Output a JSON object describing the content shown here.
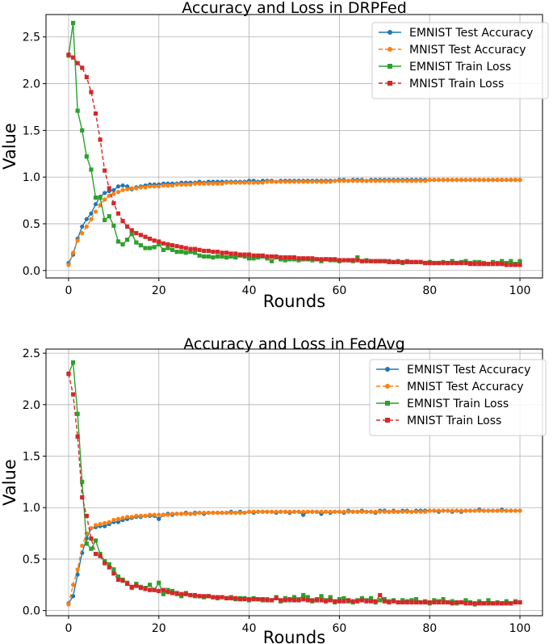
{
  "chart_data": [
    {
      "type": "line",
      "title": "Accuracy and Loss in DRPFed",
      "xlabel": "Rounds",
      "ylabel": "Value",
      "xlim": [
        -5,
        105
      ],
      "ylim": [
        -0.08,
        2.74
      ],
      "xticks": [
        0,
        20,
        40,
        60,
        80,
        100
      ],
      "xtick_labels": [
        "0",
        "20",
        "40",
        "60",
        "80",
        "100"
      ],
      "yticks": [
        0.0,
        0.5,
        1.0,
        1.5,
        2.0,
        2.5
      ],
      "ytick_labels": [
        "0.0",
        "0.5",
        "1.0",
        "1.5",
        "2.0",
        "2.5"
      ],
      "grid": true,
      "legend_position": "top-right",
      "x": [
        0,
        1,
        2,
        3,
        4,
        5,
        6,
        7,
        8,
        9,
        10,
        11,
        12,
        13,
        14,
        15,
        16,
        17,
        18,
        19,
        20,
        21,
        22,
        23,
        24,
        25,
        26,
        27,
        28,
        29,
        30,
        31,
        32,
        33,
        34,
        35,
        36,
        37,
        38,
        39,
        40,
        41,
        42,
        43,
        44,
        45,
        46,
        47,
        48,
        49,
        50,
        51,
        52,
        53,
        54,
        55,
        56,
        57,
        58,
        59,
        60,
        61,
        62,
        63,
        64,
        65,
        66,
        67,
        68,
        69,
        70,
        71,
        72,
        73,
        74,
        75,
        76,
        77,
        78,
        79,
        80,
        81,
        82,
        83,
        84,
        85,
        86,
        87,
        88,
        89,
        90,
        91,
        92,
        93,
        94,
        95,
        96,
        97,
        98,
        99,
        100
      ],
      "series": [
        {
          "name": "EMNIST Test Accuracy",
          "color": "#1f77b4",
          "dash": "solid",
          "marker": "circle",
          "values": [
            0.08,
            0.17,
            0.34,
            0.47,
            0.55,
            0.61,
            0.71,
            0.79,
            0.83,
            0.85,
            0.86,
            0.9,
            0.91,
            0.9,
            0.87,
            0.89,
            0.9,
            0.91,
            0.92,
            0.92,
            0.92,
            0.93,
            0.93,
            0.93,
            0.93,
            0.94,
            0.94,
            0.94,
            0.94,
            0.95,
            0.94,
            0.95,
            0.95,
            0.95,
            0.95,
            0.95,
            0.95,
            0.95,
            0.95,
            0.95,
            0.96,
            0.96,
            0.95,
            0.96,
            0.96,
            0.96,
            0.95,
            0.96,
            0.96,
            0.96,
            0.96,
            0.96,
            0.96,
            0.96,
            0.96,
            0.96,
            0.96,
            0.96,
            0.96,
            0.96,
            0.97,
            0.97,
            0.96,
            0.97,
            0.97,
            0.97,
            0.96,
            0.97,
            0.97,
            0.97,
            0.97,
            0.97,
            0.97,
            0.97,
            0.97,
            0.97,
            0.97,
            0.97,
            0.97,
            0.97,
            0.97,
            0.97,
            0.97,
            0.97,
            0.97,
            0.97,
            0.97,
            0.97,
            0.97,
            0.97,
            0.97,
            0.97,
            0.97,
            0.97,
            0.97,
            0.97,
            0.97,
            0.97,
            0.97,
            0.97,
            0.97
          ]
        },
        {
          "name": "MNIST Test Accuracy",
          "color": "#ff7f0e",
          "dash": "dashed",
          "marker": "circle",
          "values": [
            0.06,
            0.19,
            0.32,
            0.4,
            0.47,
            0.55,
            0.63,
            0.7,
            0.76,
            0.8,
            0.82,
            0.84,
            0.86,
            0.87,
            0.88,
            0.88,
            0.89,
            0.89,
            0.9,
            0.9,
            0.9,
            0.91,
            0.91,
            0.91,
            0.92,
            0.92,
            0.92,
            0.92,
            0.93,
            0.93,
            0.93,
            0.93,
            0.93,
            0.93,
            0.93,
            0.94,
            0.94,
            0.94,
            0.94,
            0.94,
            0.94,
            0.94,
            0.94,
            0.94,
            0.95,
            0.95,
            0.95,
            0.95,
            0.95,
            0.95,
            0.95,
            0.95,
            0.95,
            0.95,
            0.95,
            0.95,
            0.95,
            0.95,
            0.95,
            0.96,
            0.96,
            0.96,
            0.96,
            0.96,
            0.96,
            0.96,
            0.96,
            0.96,
            0.96,
            0.96,
            0.96,
            0.96,
            0.96,
            0.96,
            0.96,
            0.96,
            0.96,
            0.96,
            0.96,
            0.96,
            0.97,
            0.97,
            0.97,
            0.97,
            0.97,
            0.97,
            0.97,
            0.97,
            0.97,
            0.97,
            0.97,
            0.97,
            0.97,
            0.97,
            0.97,
            0.97,
            0.97,
            0.97,
            0.97,
            0.97,
            0.97
          ]
        },
        {
          "name": "EMNIST Train Loss",
          "color": "#2ca02c",
          "dash": "solid",
          "marker": "square",
          "values": [
            2.3,
            2.65,
            1.71,
            1.5,
            1.22,
            1.08,
            0.78,
            0.78,
            0.54,
            0.58,
            0.48,
            0.31,
            0.28,
            0.33,
            0.39,
            0.3,
            0.27,
            0.24,
            0.24,
            0.25,
            0.28,
            0.22,
            0.24,
            0.22,
            0.2,
            0.2,
            0.19,
            0.2,
            0.19,
            0.16,
            0.15,
            0.15,
            0.14,
            0.15,
            0.15,
            0.14,
            0.15,
            0.14,
            0.16,
            0.15,
            0.13,
            0.13,
            0.14,
            0.15,
            0.13,
            0.1,
            0.14,
            0.12,
            0.11,
            0.12,
            0.12,
            0.11,
            0.12,
            0.12,
            0.11,
            0.12,
            0.1,
            0.12,
            0.11,
            0.11,
            0.1,
            0.11,
            0.11,
            0.1,
            0.14,
            0.1,
            0.11,
            0.1,
            0.1,
            0.1,
            0.1,
            0.1,
            0.09,
            0.1,
            0.08,
            0.1,
            0.09,
            0.09,
            0.09,
            0.08,
            0.09,
            0.08,
            0.08,
            0.09,
            0.08,
            0.1,
            0.08,
            0.09,
            0.1,
            0.08,
            0.09,
            0.09,
            0.08,
            0.07,
            0.09,
            0.08,
            0.1,
            0.08,
            0.1,
            0.07,
            0.1
          ]
        },
        {
          "name": "MNIST Train Loss",
          "color": "#d62728",
          "dash": "dashed",
          "marker": "square",
          "values": [
            2.31,
            2.28,
            2.22,
            2.17,
            2.07,
            1.91,
            1.68,
            1.4,
            1.07,
            0.88,
            0.72,
            0.61,
            0.53,
            0.47,
            0.43,
            0.4,
            0.38,
            0.36,
            0.34,
            0.32,
            0.31,
            0.29,
            0.28,
            0.27,
            0.26,
            0.25,
            0.24,
            0.23,
            0.23,
            0.22,
            0.21,
            0.21,
            0.2,
            0.2,
            0.19,
            0.19,
            0.18,
            0.18,
            0.17,
            0.17,
            0.17,
            0.16,
            0.16,
            0.16,
            0.15,
            0.15,
            0.15,
            0.14,
            0.14,
            0.14,
            0.14,
            0.13,
            0.13,
            0.13,
            0.13,
            0.12,
            0.12,
            0.12,
            0.12,
            0.12,
            0.11,
            0.11,
            0.11,
            0.11,
            0.11,
            0.1,
            0.1,
            0.1,
            0.1,
            0.1,
            0.1,
            0.09,
            0.09,
            0.09,
            0.09,
            0.09,
            0.09,
            0.09,
            0.09,
            0.08,
            0.08,
            0.08,
            0.08,
            0.08,
            0.08,
            0.08,
            0.08,
            0.08,
            0.08,
            0.07,
            0.07,
            0.07,
            0.07,
            0.07,
            0.07,
            0.07,
            0.07,
            0.06,
            0.06,
            0.06,
            0.06
          ]
        }
      ]
    },
    {
      "type": "line",
      "title": "Accuracy and Loss in FedAvg",
      "xlabel": "Rounds",
      "ylabel": "Value",
      "xlim": [
        -5,
        105
      ],
      "ylim": [
        -0.05,
        2.54
      ],
      "xticks": [
        0,
        20,
        40,
        60,
        80,
        100
      ],
      "xtick_labels": [
        "0",
        "20",
        "40",
        "60",
        "80",
        "100"
      ],
      "yticks": [
        0.0,
        0.5,
        1.0,
        1.5,
        2.0,
        2.5
      ],
      "ytick_labels": [
        "0.0",
        "0.5",
        "1.0",
        "1.5",
        "2.0",
        "2.5"
      ],
      "grid": true,
      "legend_position": "top-right",
      "x": [
        0,
        1,
        2,
        3,
        4,
        5,
        6,
        7,
        8,
        9,
        10,
        11,
        12,
        13,
        14,
        15,
        16,
        17,
        18,
        19,
        20,
        21,
        22,
        23,
        24,
        25,
        26,
        27,
        28,
        29,
        30,
        31,
        32,
        33,
        34,
        35,
        36,
        37,
        38,
        39,
        40,
        41,
        42,
        43,
        44,
        45,
        46,
        47,
        48,
        49,
        50,
        51,
        52,
        53,
        54,
        55,
        56,
        57,
        58,
        59,
        60,
        61,
        62,
        63,
        64,
        65,
        66,
        67,
        68,
        69,
        70,
        71,
        72,
        73,
        74,
        75,
        76,
        77,
        78,
        79,
        80,
        81,
        82,
        83,
        84,
        85,
        86,
        87,
        88,
        89,
        90,
        91,
        92,
        93,
        94,
        95,
        96,
        97,
        98,
        99,
        100
      ],
      "series": [
        {
          "name": "EMNIST Test Accuracy",
          "color": "#1f77b4",
          "dash": "solid",
          "marker": "circle",
          "values": [
            0.07,
            0.14,
            0.35,
            0.56,
            0.7,
            0.8,
            0.81,
            0.82,
            0.82,
            0.84,
            0.86,
            0.86,
            0.88,
            0.89,
            0.9,
            0.91,
            0.91,
            0.92,
            0.92,
            0.92,
            0.89,
            0.93,
            0.94,
            0.93,
            0.94,
            0.94,
            0.95,
            0.94,
            0.95,
            0.95,
            0.94,
            0.95,
            0.95,
            0.95,
            0.95,
            0.95,
            0.96,
            0.95,
            0.96,
            0.95,
            0.96,
            0.95,
            0.96,
            0.96,
            0.96,
            0.96,
            0.95,
            0.96,
            0.96,
            0.95,
            0.96,
            0.96,
            0.93,
            0.96,
            0.96,
            0.96,
            0.94,
            0.96,
            0.95,
            0.96,
            0.96,
            0.95,
            0.97,
            0.96,
            0.96,
            0.97,
            0.96,
            0.96,
            0.95,
            0.97,
            0.97,
            0.96,
            0.97,
            0.96,
            0.97,
            0.97,
            0.96,
            0.97,
            0.97,
            0.97,
            0.97,
            0.97,
            0.96,
            0.97,
            0.97,
            0.96,
            0.97,
            0.96,
            0.97,
            0.97,
            0.97,
            0.98,
            0.97,
            0.97,
            0.97,
            0.97,
            0.98,
            0.97,
            0.97,
            0.97,
            0.97
          ]
        },
        {
          "name": "MNIST Test Accuracy",
          "color": "#ff7f0e",
          "dash": "dashed",
          "marker": "circle",
          "values": [
            0.06,
            0.25,
            0.4,
            0.63,
            0.75,
            0.8,
            0.83,
            0.84,
            0.85,
            0.86,
            0.88,
            0.89,
            0.9,
            0.91,
            0.91,
            0.92,
            0.92,
            0.92,
            0.93,
            0.93,
            0.93,
            0.93,
            0.93,
            0.94,
            0.94,
            0.94,
            0.94,
            0.94,
            0.94,
            0.95,
            0.95,
            0.95,
            0.95,
            0.95,
            0.95,
            0.95,
            0.95,
            0.95,
            0.95,
            0.95,
            0.96,
            0.96,
            0.96,
            0.96,
            0.96,
            0.96,
            0.96,
            0.96,
            0.96,
            0.96,
            0.96,
            0.96,
            0.96,
            0.96,
            0.96,
            0.96,
            0.96,
            0.96,
            0.96,
            0.96,
            0.96,
            0.96,
            0.96,
            0.96,
            0.96,
            0.96,
            0.96,
            0.96,
            0.96,
            0.96,
            0.96,
            0.96,
            0.96,
            0.96,
            0.96,
            0.96,
            0.96,
            0.96,
            0.96,
            0.96,
            0.97,
            0.97,
            0.97,
            0.97,
            0.97,
            0.97,
            0.97,
            0.97,
            0.97,
            0.97,
            0.97,
            0.97,
            0.97,
            0.97,
            0.97,
            0.97,
            0.97,
            0.97,
            0.97,
            0.97,
            0.97
          ]
        },
        {
          "name": "EMNIST Train Loss",
          "color": "#2ca02c",
          "dash": "solid",
          "marker": "square",
          "values": [
            2.3,
            2.41,
            1.91,
            1.25,
            0.65,
            0.6,
            0.68,
            0.55,
            0.48,
            0.45,
            0.4,
            0.33,
            0.3,
            0.27,
            0.22,
            0.26,
            0.23,
            0.22,
            0.25,
            0.2,
            0.27,
            0.16,
            0.2,
            0.19,
            0.16,
            0.14,
            0.17,
            0.15,
            0.14,
            0.14,
            0.13,
            0.14,
            0.13,
            0.12,
            0.13,
            0.12,
            0.13,
            0.11,
            0.12,
            0.12,
            0.1,
            0.12,
            0.11,
            0.1,
            0.11,
            0.1,
            0.13,
            0.09,
            0.12,
            0.1,
            0.13,
            0.11,
            0.15,
            0.13,
            0.09,
            0.11,
            0.14,
            0.1,
            0.13,
            0.08,
            0.11,
            0.12,
            0.09,
            0.08,
            0.1,
            0.12,
            0.1,
            0.12,
            0.08,
            0.1,
            0.11,
            0.09,
            0.1,
            0.08,
            0.1,
            0.09,
            0.1,
            0.11,
            0.08,
            0.09,
            0.07,
            0.1,
            0.09,
            0.11,
            0.08,
            0.09,
            0.07,
            0.08,
            0.1,
            0.08,
            0.06,
            0.09,
            0.07,
            0.1,
            0.07,
            0.08,
            0.07,
            0.09,
            0.07,
            0.09,
            0.08
          ]
        },
        {
          "name": "MNIST Train Loss",
          "color": "#d62728",
          "dash": "dashed",
          "marker": "square",
          "values": [
            2.3,
            2.1,
            1.69,
            1.1,
            0.92,
            0.7,
            0.55,
            0.53,
            0.46,
            0.42,
            0.36,
            0.3,
            0.29,
            0.26,
            0.23,
            0.24,
            0.22,
            0.21,
            0.2,
            0.2,
            0.19,
            0.2,
            0.18,
            0.17,
            0.17,
            0.16,
            0.16,
            0.15,
            0.15,
            0.14,
            0.14,
            0.14,
            0.13,
            0.13,
            0.13,
            0.12,
            0.12,
            0.12,
            0.11,
            0.11,
            0.11,
            0.11,
            0.11,
            0.11,
            0.1,
            0.1,
            0.12,
            0.1,
            0.1,
            0.11,
            0.1,
            0.1,
            0.11,
            0.1,
            0.1,
            0.1,
            0.1,
            0.09,
            0.1,
            0.09,
            0.09,
            0.09,
            0.1,
            0.09,
            0.09,
            0.1,
            0.09,
            0.09,
            0.09,
            0.15,
            0.09,
            0.08,
            0.09,
            0.08,
            0.08,
            0.08,
            0.08,
            0.08,
            0.08,
            0.08,
            0.08,
            0.08,
            0.08,
            0.08,
            0.08,
            0.07,
            0.08,
            0.08,
            0.07,
            0.07,
            0.07,
            0.07,
            0.07,
            0.07,
            0.07,
            0.07,
            0.07,
            0.07,
            0.07,
            0.08,
            0.08
          ]
        }
      ]
    }
  ]
}
